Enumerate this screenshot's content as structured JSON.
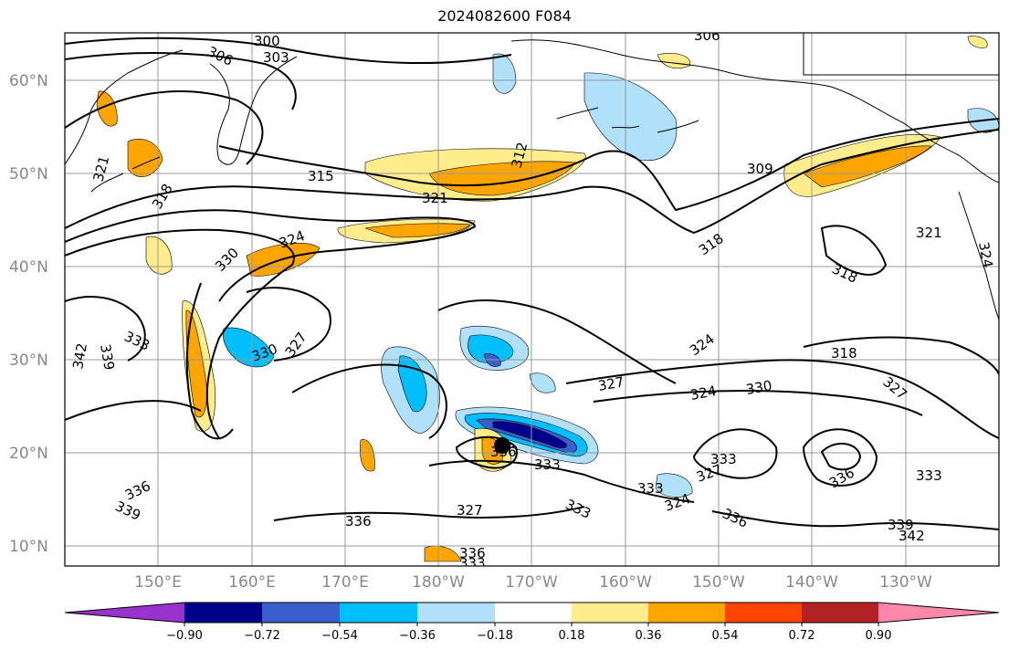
{
  "title": "2024082600 F084",
  "map": {
    "latitude_labels": [
      "60°N",
      "50°N",
      "40°N",
      "30°N",
      "20°N",
      "10°N"
    ],
    "longitude_labels": [
      "150°E",
      "160°E",
      "170°E",
      "180°W",
      "170°W",
      "160°W",
      "150°W",
      "140°W",
      "130°W"
    ],
    "grid": true
  },
  "contour_labels": [
    {
      "text": "300"
    },
    {
      "text": "306"
    },
    {
      "text": "303"
    },
    {
      "text": "306"
    },
    {
      "text": "321"
    },
    {
      "text": "318"
    },
    {
      "text": "315"
    },
    {
      "text": "321"
    },
    {
      "text": "312"
    },
    {
      "text": "309"
    },
    {
      "text": "318"
    },
    {
      "text": "321"
    },
    {
      "text": "324"
    },
    {
      "text": "318"
    },
    {
      "text": "330"
    },
    {
      "text": "324"
    },
    {
      "text": "324"
    },
    {
      "text": "318"
    },
    {
      "text": "333"
    },
    {
      "text": "330"
    },
    {
      "text": "327"
    },
    {
      "text": "342"
    },
    {
      "text": "339"
    },
    {
      "text": "327"
    },
    {
      "text": "324"
    },
    {
      "text": "330"
    },
    {
      "text": "327"
    },
    {
      "text": "336"
    },
    {
      "text": "333"
    },
    {
      "text": "333"
    },
    {
      "text": "327"
    },
    {
      "text": "333"
    },
    {
      "text": "324"
    },
    {
      "text": "336"
    },
    {
      "text": "333"
    },
    {
      "text": "336"
    },
    {
      "text": "339"
    },
    {
      "text": "336"
    },
    {
      "text": "327"
    },
    {
      "text": "333"
    },
    {
      "text": "336"
    },
    {
      "text": "339"
    },
    {
      "text": "342"
    },
    {
      "text": "336"
    },
    {
      "text": "333"
    }
  ],
  "colorbar": {
    "colors": [
      "#9932cc",
      "#00008b",
      "#3a5fcd",
      "#00bfff",
      "#b0e0fa",
      "#ffffff",
      "#ffec8b",
      "#ffa500",
      "#ff4500",
      "#b22222",
      "#ff88aa"
    ],
    "tick_labels": [
      "−0.90",
      "−0.72",
      "−0.54",
      "−0.36",
      "−0.18",
      "0.18",
      "0.36",
      "0.54",
      "0.72",
      "0.90"
    ]
  },
  "colors": {
    "neg_light": "#b0e0fa",
    "neg_mid": "#00bfff",
    "neg_strong": "#3a5fcd",
    "neg_max": "#00008b",
    "pos_light": "#ffec8b",
    "pos_mid": "#ffa500"
  }
}
